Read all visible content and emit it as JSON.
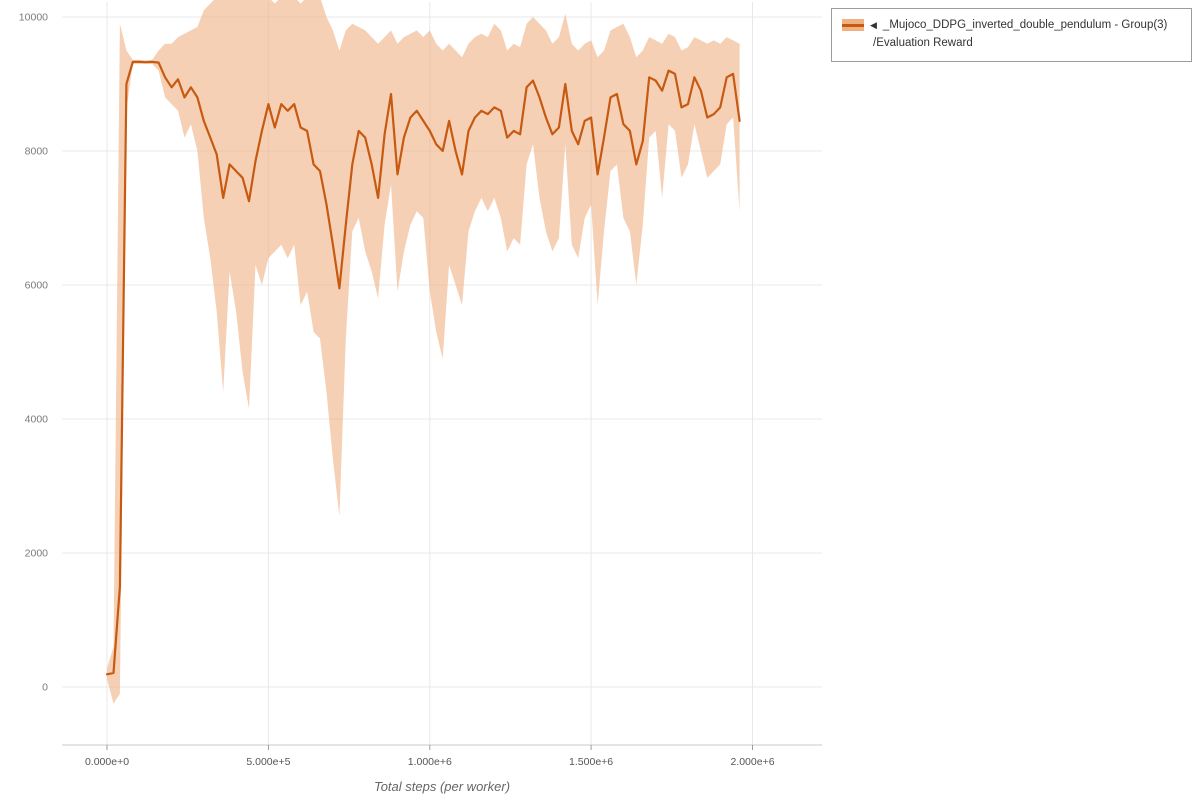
{
  "legend": {
    "arrow": "◀",
    "series_label": "_Mujoco_DDPG_inverted_double_pendulum - Group(3)",
    "metric_label": "/Evaluation Reward"
  },
  "chart_data": {
    "type": "line",
    "title": "",
    "xlabel": "Total steps (per worker)",
    "ylabel": "",
    "grid": true,
    "legend_position": "top-right",
    "xlim": [
      0,
      2000000
    ],
    "ylim": [
      -870,
      10260
    ],
    "x_tick_labels": [
      "0.000e+0",
      "5.000e+5",
      "1.000e+6",
      "1.500e+6",
      "2.000e+6"
    ],
    "x_tick_values": [
      0,
      500000,
      1000000,
      1500000,
      2000000
    ],
    "y_tick_labels": [
      "0",
      "2000",
      "4000",
      "6000",
      "8000",
      "10000"
    ],
    "y_tick_values": [
      0,
      2000,
      4000,
      6000,
      8000,
      10000
    ],
    "series": [
      {
        "name": "_Mujoco_DDPG_inverted_double_pendulum - Group(3) /Evaluation Reward",
        "color": "#c75a11",
        "band_color": "#f0b183",
        "band_opacity": 0.6,
        "x": [
          0,
          20000,
          40000,
          60000,
          80000,
          100000,
          120000,
          140000,
          160000,
          180000,
          200000,
          220000,
          240000,
          260000,
          280000,
          300000,
          320000,
          340000,
          360000,
          380000,
          400000,
          420000,
          440000,
          460000,
          480000,
          500000,
          520000,
          540000,
          560000,
          580000,
          600000,
          620000,
          640000,
          660000,
          680000,
          700000,
          720000,
          740000,
          760000,
          780000,
          800000,
          820000,
          840000,
          860000,
          880000,
          900000,
          920000,
          940000,
          960000,
          980000,
          1000000,
          1020000,
          1040000,
          1060000,
          1080000,
          1100000,
          1120000,
          1140000,
          1160000,
          1180000,
          1200000,
          1220000,
          1240000,
          1260000,
          1280000,
          1300000,
          1320000,
          1340000,
          1360000,
          1380000,
          1400000,
          1420000,
          1440000,
          1460000,
          1480000,
          1500000,
          1520000,
          1540000,
          1560000,
          1580000,
          1600000,
          1620000,
          1640000,
          1660000,
          1680000,
          1700000,
          1720000,
          1740000,
          1760000,
          1780000,
          1800000,
          1820000,
          1840000,
          1860000,
          1880000,
          1900000,
          1920000,
          1940000,
          1960000
        ],
        "mean": [
          190,
          210,
          1500,
          9000,
          9330,
          9330,
          9325,
          9330,
          9320,
          9100,
          8950,
          9070,
          8800,
          8950,
          8800,
          8450,
          8200,
          7950,
          7300,
          7800,
          7700,
          7600,
          7250,
          7850,
          8300,
          8700,
          8350,
          8700,
          8600,
          8700,
          8350,
          8300,
          7800,
          7700,
          7200,
          6600,
          5950,
          6900,
          7800,
          8300,
          8200,
          7800,
          7300,
          8250,
          8850,
          7650,
          8200,
          8500,
          8600,
          8450,
          8300,
          8100,
          8000,
          8450,
          8000,
          7650,
          8300,
          8500,
          8600,
          8550,
          8650,
          8600,
          8200,
          8300,
          8250,
          8950,
          9050,
          8800,
          8500,
          8250,
          8350,
          9000,
          8300,
          8100,
          8450,
          8500,
          7650,
          8200,
          8800,
          8850,
          8400,
          8300,
          7800,
          8150,
          9100,
          9050,
          8900,
          9200,
          9150,
          8650,
          8700,
          9100,
          8900,
          8500,
          8550,
          8650,
          9100,
          9150,
          8450
        ],
        "lower": [
          120,
          -250,
          -100,
          8600,
          9300,
          9300,
          9300,
          9300,
          9200,
          8800,
          8700,
          8600,
          8200,
          8400,
          8000,
          7000,
          6400,
          5600,
          4400,
          6200,
          5600,
          4700,
          4150,
          6300,
          6000,
          6400,
          6500,
          6600,
          6400,
          6600,
          5700,
          5900,
          5300,
          5200,
          4400,
          3400,
          2550,
          5200,
          6800,
          7000,
          6500,
          6200,
          5800,
          6900,
          7500,
          5900,
          6500,
          6900,
          7100,
          7000,
          5900,
          5300,
          4900,
          6300,
          6000,
          5700,
          6800,
          7100,
          7300,
          7100,
          7300,
          7000,
          6500,
          6700,
          6600,
          7800,
          8100,
          7300,
          6800,
          6500,
          6700,
          8100,
          6600,
          6400,
          7000,
          7200,
          5700,
          6800,
          7700,
          7800,
          7000,
          6800,
          6000,
          6900,
          8200,
          8300,
          7300,
          8400,
          8300,
          7600,
          7800,
          8400,
          8000,
          7600,
          7700,
          7800,
          8400,
          8500,
          7100
        ],
        "upper": [
          280,
          600,
          9900,
          9500,
          9360,
          9360,
          9355,
          9360,
          9500,
          9600,
          9600,
          9700,
          9750,
          9800,
          9850,
          10100,
          10200,
          10300,
          10300,
          10250,
          10300,
          10300,
          10250,
          10300,
          10300,
          10300,
          10200,
          10300,
          10300,
          10300,
          10200,
          10300,
          10250,
          10300,
          10000,
          9800,
          9500,
          9800,
          9900,
          9850,
          9800,
          9700,
          9600,
          9700,
          9800,
          9600,
          9700,
          9750,
          9800,
          9700,
          9800,
          9600,
          9500,
          9600,
          9500,
          9400,
          9600,
          9700,
          9750,
          9700,
          9900,
          9800,
          9500,
          9600,
          9550,
          9900,
          10000,
          9900,
          9800,
          9600,
          9700,
          10050,
          9600,
          9500,
          9600,
          9650,
          9400,
          9500,
          9800,
          9850,
          9900,
          9700,
          9400,
          9500,
          9700,
          9650,
          9600,
          9750,
          9700,
          9500,
          9550,
          9700,
          9650,
          9600,
          9650,
          9600,
          9700,
          9650,
          9600
        ]
      }
    ]
  }
}
